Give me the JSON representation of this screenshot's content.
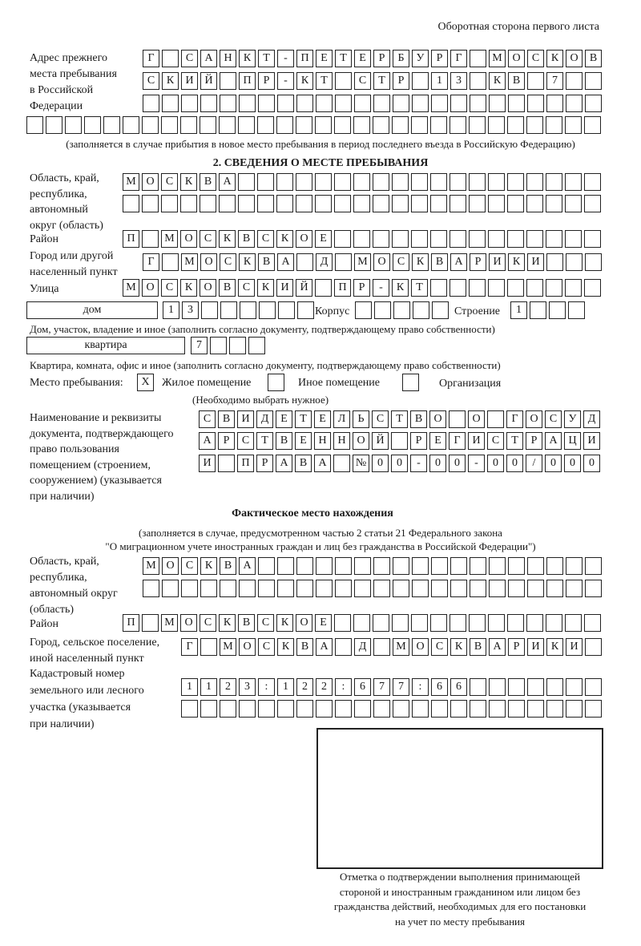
{
  "header": {
    "side_note": "Оборотная сторона первого листа"
  },
  "previous_address": {
    "label": [
      "Адрес прежнего",
      "места пребывания",
      "в Российской",
      "Федерации"
    ],
    "rows": [
      [
        "Г",
        "",
        "С",
        "А",
        "Н",
        "К",
        "Т",
        "-",
        "П",
        "Е",
        "Т",
        "Е",
        "Р",
        "Б",
        "У",
        "Р",
        "Г",
        "",
        "М",
        "О",
        "С",
        "К",
        "О",
        "В"
      ],
      [
        "С",
        "К",
        "И",
        "Й",
        "",
        "П",
        "Р",
        "-",
        "К",
        "Т",
        "",
        "С",
        "Т",
        "Р",
        "",
        "1",
        "3",
        "",
        "К",
        "В",
        "",
        "7"
      ],
      [],
      []
    ],
    "note": "(заполняется в случае прибытия в новое место пребывания в период последнего въезда в Российскую Федерацию)"
  },
  "stay_place": {
    "title": "2. СВЕДЕНИЯ О МЕСТЕ ПРЕБЫВАНИЯ",
    "region_label": [
      "Область, край,",
      "республика,",
      "автономный",
      "округ (область)"
    ],
    "region_rows": [
      [
        "М",
        "О",
        "С",
        "К",
        "В",
        "А"
      ],
      []
    ],
    "district_label": "Район",
    "district": [
      "П",
      "",
      "М",
      "О",
      "С",
      "К",
      "В",
      "С",
      "К",
      "О",
      "Е"
    ],
    "city_label": [
      "Город или другой",
      "населенный пункт"
    ],
    "city": [
      "Г",
      "",
      "М",
      "О",
      "С",
      "К",
      "В",
      "А",
      "",
      "Д",
      "",
      "М",
      "О",
      "С",
      "К",
      "В",
      "А",
      "Р",
      "И",
      "К",
      "И"
    ],
    "street_label": "Улица",
    "street": [
      "М",
      "О",
      "С",
      "К",
      "О",
      "В",
      "С",
      "К",
      "И",
      "Й",
      "",
      "П",
      "Р",
      "-",
      "К",
      "Т"
    ],
    "house_type": "дом",
    "house": [
      "1",
      "3"
    ],
    "korpus_label": "Корпус",
    "korpus": [],
    "building_label": "Строение",
    "building": [
      "1"
    ],
    "house_note": "Дом, участок, владение и иное (заполнить согласно документу, подтверждающему право собственности)",
    "flat_type": "квартира",
    "flat": [
      "7"
    ],
    "flat_note": "Квартира, комната, офис и иное (заполнить согласно документу, подтверждающему право собственности)",
    "place_label": "Место пребывания:",
    "options": [
      {
        "label": "Жилое помещение",
        "mark": "X",
        "checked": true
      },
      {
        "label": "Иное помещение",
        "mark": "",
        "checked": false
      },
      {
        "label": "Организация",
        "mark": "",
        "checked": false
      }
    ],
    "choose_note": "(Необходимо выбрать нужное)",
    "doc_label": [
      "Наименование и реквизиты",
      "документа, подтверждающего",
      "право пользования",
      "помещением (строением,",
      "сооружением) (указывается",
      "при наличии)"
    ],
    "doc_rows": [
      [
        "С",
        "В",
        "И",
        "Д",
        "Е",
        "Т",
        "Е",
        "Л",
        "Ь",
        "С",
        "Т",
        "В",
        "О",
        "",
        "О",
        "",
        "Г",
        "О",
        "С",
        "У",
        "Д"
      ],
      [
        "А",
        "Р",
        "С",
        "Т",
        "В",
        "Е",
        "Н",
        "Н",
        "О",
        "Й",
        "",
        "Р",
        "Е",
        "Г",
        "И",
        "С",
        "Т",
        "Р",
        "А",
        "Ц",
        "И"
      ],
      [
        "И",
        "",
        "П",
        "Р",
        "А",
        "В",
        "А",
        "",
        "№",
        "0",
        "0",
        "-",
        "0",
        "0",
        "-",
        "0",
        "0",
        "/",
        "0",
        "0",
        "0"
      ]
    ]
  },
  "actual_place": {
    "title": "Фактическое место нахождения",
    "note": [
      "(заполняется в случае, предусмотренном частью 2 статьи 21 Федерального закона",
      "\"О миграционном учете иностранных граждан и лиц без гражданства в Российской Федерации\")"
    ],
    "region_label": [
      "Область, край,",
      "республика,",
      "автономный округ",
      "(область)"
    ],
    "region_rows": [
      [
        "М",
        "О",
        "С",
        "К",
        "В",
        "А"
      ],
      []
    ],
    "district_label": "Район",
    "district": [
      "П",
      "",
      "М",
      "О",
      "С",
      "К",
      "В",
      "С",
      "К",
      "О",
      "Е"
    ],
    "city_label": [
      "Город, сельское поселение,",
      "иной населенный пункт"
    ],
    "city": [
      "Г",
      "",
      "М",
      "О",
      "С",
      "К",
      "В",
      "А",
      "",
      "Д",
      "",
      "М",
      "О",
      "С",
      "К",
      "В",
      "А",
      "Р",
      "И",
      "К",
      "И"
    ],
    "cadastral_label": [
      "Кадастровый номер",
      "земельного или лесного",
      "участка (указывается",
      "при наличии)"
    ],
    "cadastral_rows": [
      [
        "1",
        "1",
        "2",
        "3",
        ":",
        "1",
        "2",
        "2",
        ":",
        "6",
        "7",
        "7",
        ":",
        "6",
        "6"
      ],
      []
    ]
  },
  "confirmation": {
    "caption": [
      "Отметка о подтверждении выполнения принимающей",
      "стороной и иностранным гражданином или лицом без",
      "гражданства действий, необходимых для его постановки",
      "на учет по месту пребывания"
    ]
  }
}
